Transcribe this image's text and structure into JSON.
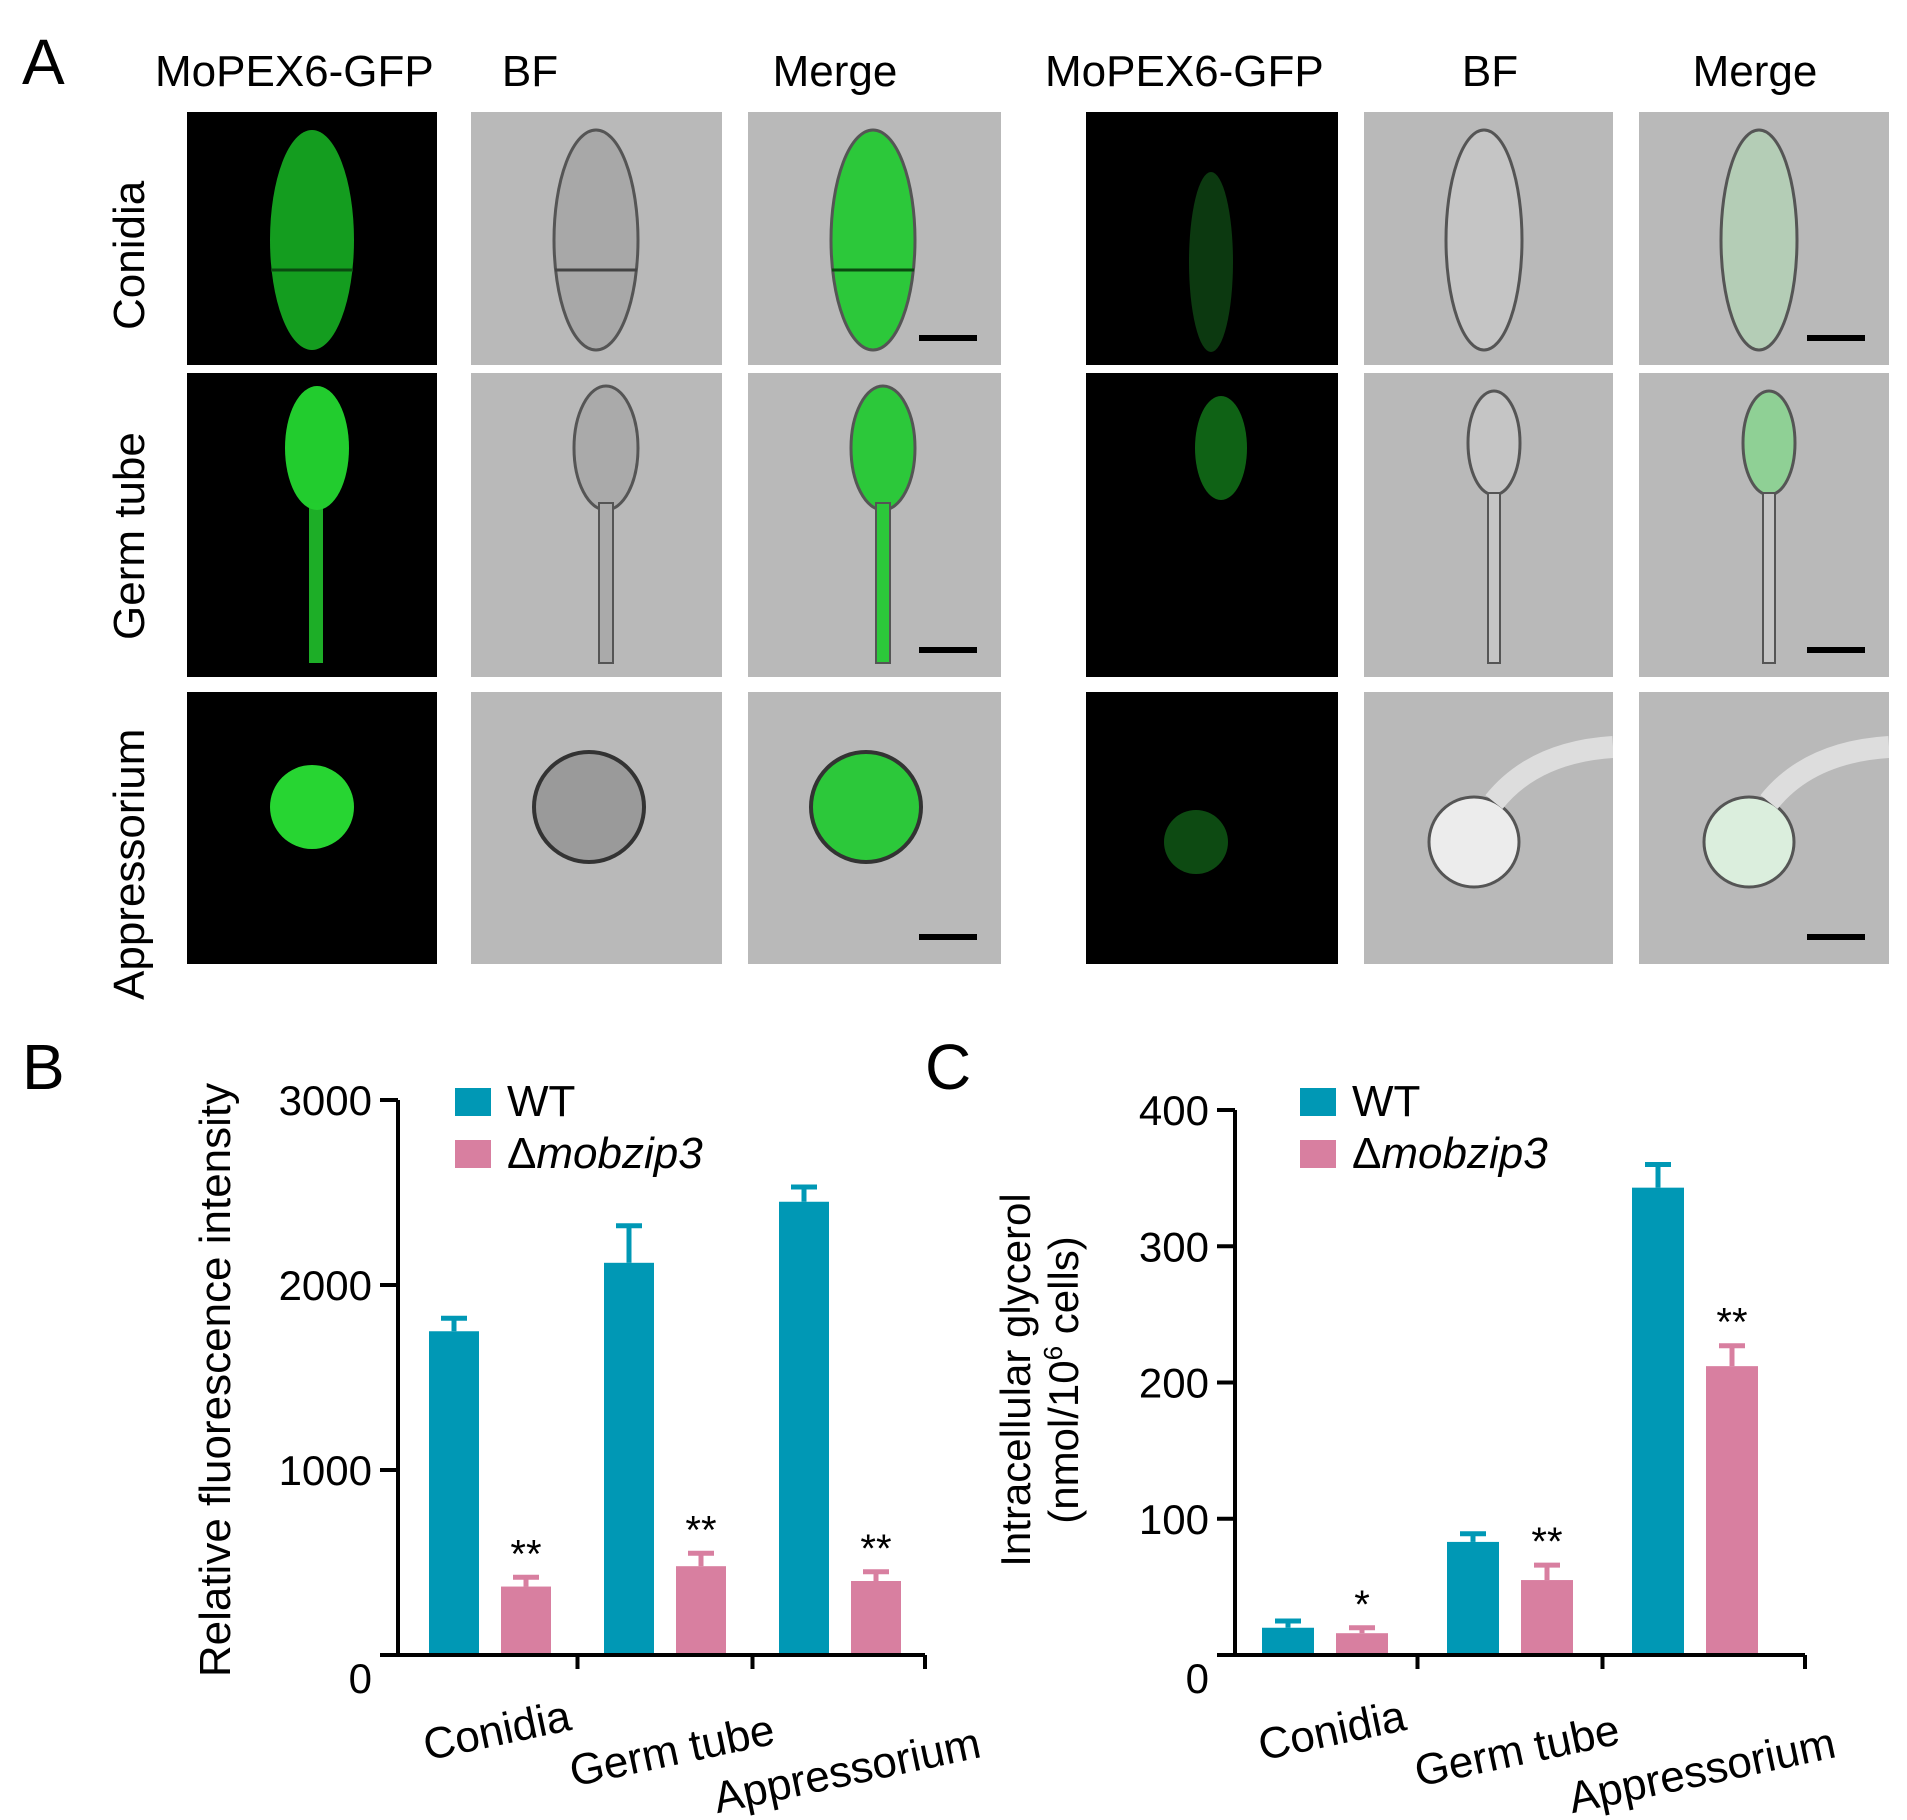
{
  "panels": {
    "a": "A",
    "b": "B",
    "c": "C"
  },
  "microscopy": {
    "columns": [
      "MoPEX6-GFP",
      "BF",
      "Merge",
      "MoPEX6-GFP",
      "BF",
      "Merge"
    ],
    "rows": [
      "Conidia",
      "Germ tube",
      "Appressorium"
    ]
  },
  "colors": {
    "wt": "#0098b5",
    "mutant": "#d87fa0",
    "gfp": "#1fd12c"
  },
  "chart_data": [
    {
      "type": "bar",
      "categories": [
        "Conidia",
        "Germ tube",
        "Appressorium"
      ],
      "ylabel": "Relative fluorescence intensity",
      "ylim": [
        0,
        3000
      ],
      "yticks": [
        0,
        1000,
        2000,
        3000
      ],
      "legend_position": "top-left",
      "series": [
        {
          "name": "WT",
          "values": [
            1750,
            2120,
            2450
          ],
          "errors": [
            70,
            200,
            80
          ]
        },
        {
          "name": "Δmobzip3",
          "values": [
            370,
            480,
            400
          ],
          "errors": [
            50,
            70,
            50
          ]
        }
      ],
      "annotations": [
        "**",
        "**",
        "**"
      ]
    },
    {
      "type": "bar",
      "categories": [
        "Conidia",
        "Germ tube",
        "Appressorium"
      ],
      "ylabel_line1": "Intracellular glycerol",
      "ylabel_line2_prefix": "(nmol/10",
      "ylabel_line2_sup": "6",
      "ylabel_line2_suffix": " cells)",
      "ylim": [
        0,
        400
      ],
      "yticks": [
        0,
        100,
        200,
        300,
        400
      ],
      "legend_position": "top-left",
      "series": [
        {
          "name": "WT",
          "values": [
            20,
            83,
            343
          ],
          "errors": [
            5,
            6,
            17
          ]
        },
        {
          "name": "Δmobzip3",
          "values": [
            16,
            55,
            212
          ],
          "errors": [
            4,
            11,
            15
          ]
        }
      ],
      "annotations": [
        "*",
        "**",
        "**"
      ]
    }
  ]
}
